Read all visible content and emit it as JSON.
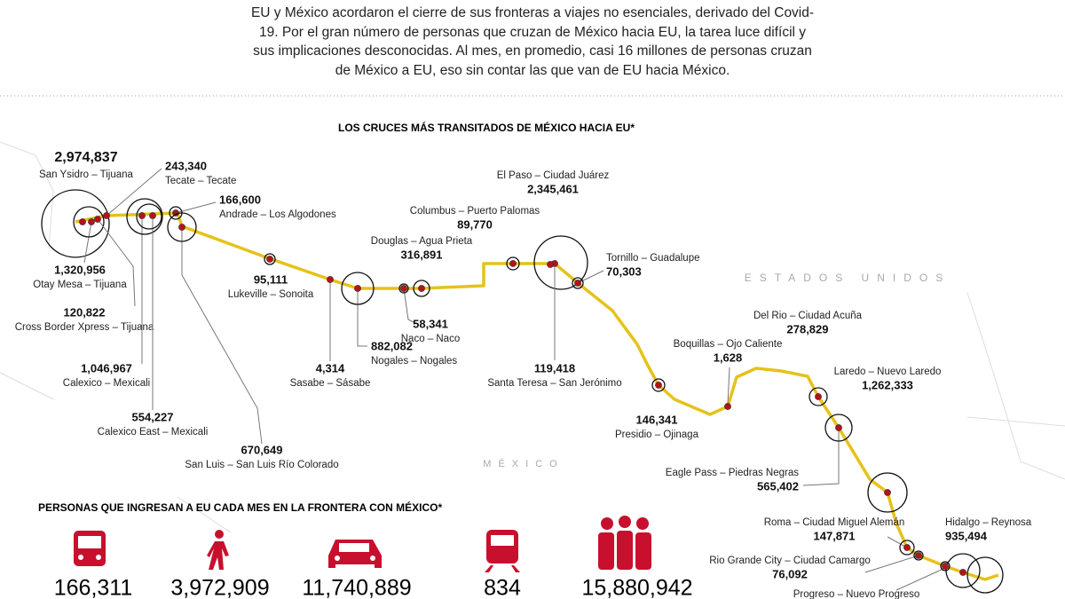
{
  "intro": "EU y México acordaron el cierre de sus fronteras a viajes no esenciales, derivado del Covid-19. Por el gran número de personas que cruzan de México hacia EU, la tarea luce difícil y sus implicaciones desconocidas. Al mes, en promedio, casi 16 millones de personas cruzan de México a EU, eso sin contar las que van de EU hacia México.",
  "map_title": "LOS CRUCES MÁS TRANSITADOS DE MÉXICO HACIA EU*",
  "region_labels": [
    "ESTADOS UNIDOS",
    "MÉXICO"
  ],
  "crossings": [
    {
      "name": "San Ysidro – Tijuana",
      "value": "2,974,837"
    },
    {
      "name": "Otay Mesa – Tijuana",
      "value": "1,320,956"
    },
    {
      "name": "Tecate – Tecate",
      "value": "243,340"
    },
    {
      "name": "Cross Border Xpress – Tijuana",
      "value": "120,822"
    },
    {
      "name": "Calexico – Mexicali",
      "value": "1,046,967"
    },
    {
      "name": "Calexico East – Mexicali",
      "value": "554,227"
    },
    {
      "name": "Andrade – Los Algodones",
      "value": "166,600"
    },
    {
      "name": "San Luis – San Luis Río Colorado",
      "value": "670,649"
    },
    {
      "name": "Lukeville – Sonoita",
      "value": "95,111"
    },
    {
      "name": "Sasabe – Sásabe",
      "value": "4,314"
    },
    {
      "name": "Nogales – Nogales",
      "value": "882,082"
    },
    {
      "name": "Naco – Naco",
      "value": "58,341"
    },
    {
      "name": "Douglas – Agua Prieta",
      "value": "316,891"
    },
    {
      "name": "Columbus – Puerto Palomas",
      "value": "89,770"
    },
    {
      "name": "El Paso – Ciudad Juárez",
      "value": "2,345,461"
    },
    {
      "name": "Santa Teresa – San Jerónimo",
      "value": "119,418"
    },
    {
      "name": "Tornillo – Guadalupe",
      "value": "70,303"
    },
    {
      "name": "Presidio – Ojinaga",
      "value": "146,341"
    },
    {
      "name": "Boquillas – Ojo Caliente",
      "value": "1,628"
    },
    {
      "name": "Del Rio – Ciudad Acuña",
      "value": "278,829"
    },
    {
      "name": "Laredo – Nuevo Laredo",
      "value": "1,262,333"
    },
    {
      "name": "Eagle Pass – Piedras Negras",
      "value": "565,402"
    },
    {
      "name": "Roma – Ciudad Miguel Alemán",
      "value": "147,871"
    },
    {
      "name": "Hidalgo – Reynosa",
      "value": "935,494"
    },
    {
      "name": "Rio Grande City – Ciudad Camargo",
      "value": "76,092"
    },
    {
      "name": "Progreso – Nuevo Progreso"
    }
  ],
  "monthly_title": "PERSONAS QUE INGRESAN A EU CADA MES EN LA FRONTERA CON MÉXICO*",
  "monthly": [
    {
      "value": "166,311"
    },
    {
      "value": "3,972,909"
    },
    {
      "value": "11,740,889"
    },
    {
      "value": "834"
    },
    {
      "value": "15,880,942"
    }
  ]
}
